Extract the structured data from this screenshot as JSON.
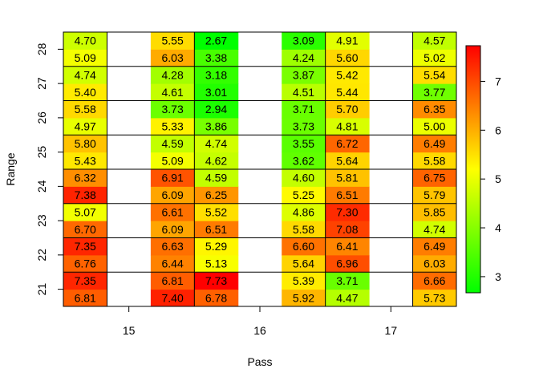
{
  "chart_data": {
    "type": "heatmap",
    "xlabel": "Pass",
    "ylabel": "Range",
    "x_ticks": [
      "15",
      "16",
      "17"
    ],
    "y_ticks": [
      "21",
      "22",
      "23",
      "24",
      "25",
      "26",
      "27",
      "28"
    ],
    "columns": [
      "15a",
      "15b",
      "15c",
      "16a",
      "16b",
      "16c",
      "17a",
      "17b",
      "17c"
    ],
    "rows_bottom_to_top": [
      "21a",
      "21b",
      "22a",
      "22b",
      "23a",
      "23b",
      "24a",
      "24b",
      "25a",
      "25b",
      "26a",
      "26b",
      "27a",
      "27b",
      "28a",
      "28b"
    ],
    "columns_data": [
      [
        6.81,
        7.35,
        6.76,
        7.35,
        6.7,
        5.07,
        7.38,
        6.32,
        5.43,
        5.8,
        4.97,
        5.58,
        5.4,
        4.74,
        5.09,
        4.7
      ],
      [
        null,
        null,
        null,
        null,
        null,
        null,
        null,
        null,
        null,
        null,
        null,
        null,
        null,
        null,
        null,
        null
      ],
      [
        7.4,
        6.81,
        6.44,
        6.63,
        6.09,
        6.61,
        6.09,
        6.91,
        5.09,
        4.59,
        5.33,
        3.73,
        4.61,
        4.28,
        6.03,
        5.55
      ],
      [
        6.78,
        7.73,
        5.13,
        5.29,
        6.51,
        5.52,
        6.25,
        4.59,
        4.62,
        4.74,
        3.86,
        2.94,
        3.01,
        3.18,
        3.38,
        2.67
      ],
      [
        null,
        null,
        null,
        null,
        null,
        null,
        null,
        null,
        null,
        null,
        null,
        null,
        null,
        null,
        null,
        null
      ],
      [
        5.92,
        5.39,
        5.64,
        6.6,
        5.58,
        4.86,
        5.25,
        4.6,
        3.62,
        3.55,
        3.73,
        3.71,
        4.51,
        3.87,
        4.24,
        3.09
      ],
      [
        4.47,
        3.71,
        6.96,
        6.41,
        7.08,
        7.3,
        6.51,
        5.81,
        5.64,
        6.72,
        4.81,
        5.7,
        5.44,
        5.42,
        5.6,
        4.91
      ],
      [
        null,
        null,
        null,
        null,
        null,
        null,
        null,
        null,
        null,
        null,
        null,
        null,
        null,
        null,
        null,
        null
      ],
      [
        5.73,
        6.66,
        6.03,
        6.49,
        4.74,
        5.85,
        5.79,
        6.75,
        5.58,
        6.49,
        5.0,
        6.35,
        3.77,
        5.54,
        5.02,
        4.57
      ]
    ],
    "colorbar": {
      "range": [
        2.67,
        7.73
      ],
      "ticks": [
        "3",
        "4",
        "5",
        "6",
        "7"
      ],
      "colors": [
        "#00ff00",
        "#ffff00",
        "#ff0000"
      ]
    },
    "grid": false,
    "legend": "right"
  }
}
